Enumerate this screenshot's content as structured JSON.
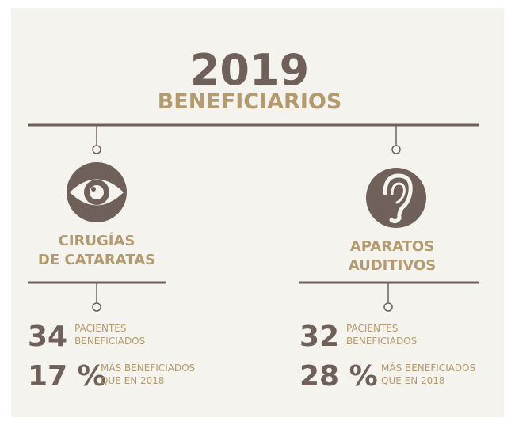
{
  "header": {
    "year": "2019",
    "subtitle": "BENEFICIARIOS"
  },
  "items": [
    {
      "label": [
        "CIRUGÍAS",
        "DE CATARATAS"
      ],
      "patients": {
        "value": "34",
        "label": [
          "PACIENTES",
          "BENEFICIADOS"
        ]
      },
      "increase": {
        "value": "17 %",
        "label": [
          "MÁS BENEFICIADOS",
          "QUE EN 2018"
        ]
      }
    },
    {
      "label": [
        "APARATOS",
        "AUDITIVOS"
      ],
      "patients": {
        "value": "32",
        "label": [
          "PACIENTES",
          "BENEFICIADOS"
        ]
      },
      "increase": {
        "value": "28 %",
        "label": [
          "MÁS BENEFICIADOS",
          "QUE EN 2018"
        ]
      }
    }
  ]
}
